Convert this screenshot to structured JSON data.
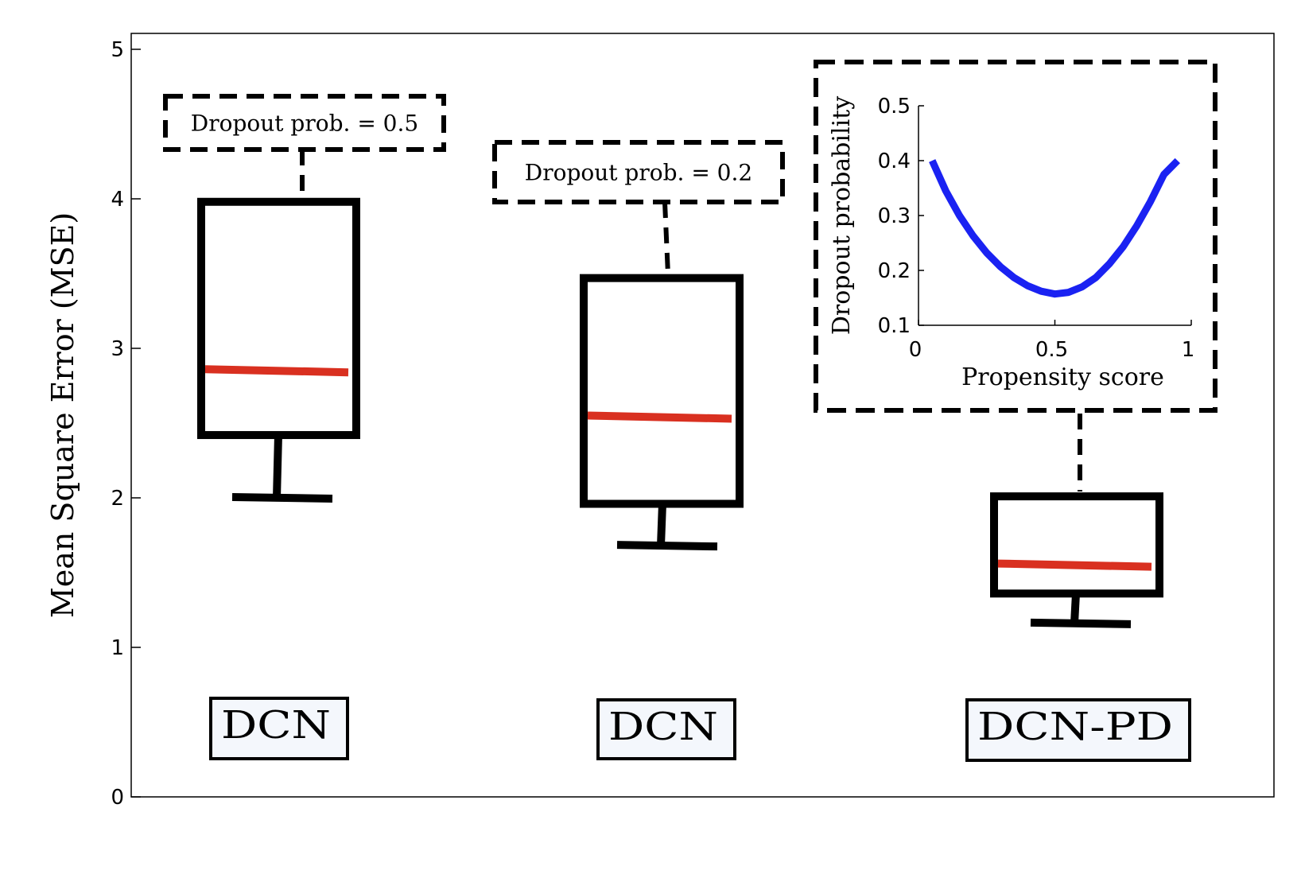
{
  "chart_data": {
    "type": "box",
    "ylabel": "Mean Square Error (MSE)",
    "ylim": [
      0,
      5
    ],
    "yticks": [
      "0",
      "1",
      "2",
      "3",
      "4",
      "5"
    ],
    "boxes": [
      {
        "label": "DCN",
        "annotation": "Dropout prob. = 0.5",
        "whisker_low": 2.0,
        "q1": 2.42,
        "median": 2.85,
        "q3": 3.98
      },
      {
        "label": "DCN",
        "annotation": "Dropout prob. = 0.2",
        "whisker_low": 1.68,
        "q1": 1.96,
        "median": 2.54,
        "q3": 3.47
      },
      {
        "label": "DCN-PD",
        "whisker_low": 1.16,
        "q1": 1.36,
        "median": 1.55,
        "q3": 2.01
      }
    ],
    "inset": {
      "type": "line",
      "xlabel": "Propensity score",
      "ylabel": "Dropout probability",
      "xlim": [
        0,
        1
      ],
      "ylim": [
        0.1,
        0.5
      ],
      "xticks": [
        "0",
        "0.5",
        "1"
      ],
      "yticks": [
        "0.1",
        "0.2",
        "0.3",
        "0.4",
        "0.5"
      ],
      "x": [
        0.05,
        0.1,
        0.15,
        0.2,
        0.25,
        0.3,
        0.35,
        0.4,
        0.45,
        0.5,
        0.55,
        0.6,
        0.65,
        0.7,
        0.75,
        0.8,
        0.85,
        0.9,
        0.95
      ],
      "y": [
        0.4,
        0.345,
        0.3,
        0.263,
        0.232,
        0.207,
        0.187,
        0.172,
        0.162,
        0.157,
        0.16,
        0.17,
        0.187,
        0.212,
        0.243,
        0.281,
        0.325,
        0.375,
        0.4
      ],
      "color": "#1a22f2"
    },
    "colors": {
      "median": "#d93020",
      "box": "#000000",
      "label_fill": "#f4f7fc"
    }
  }
}
